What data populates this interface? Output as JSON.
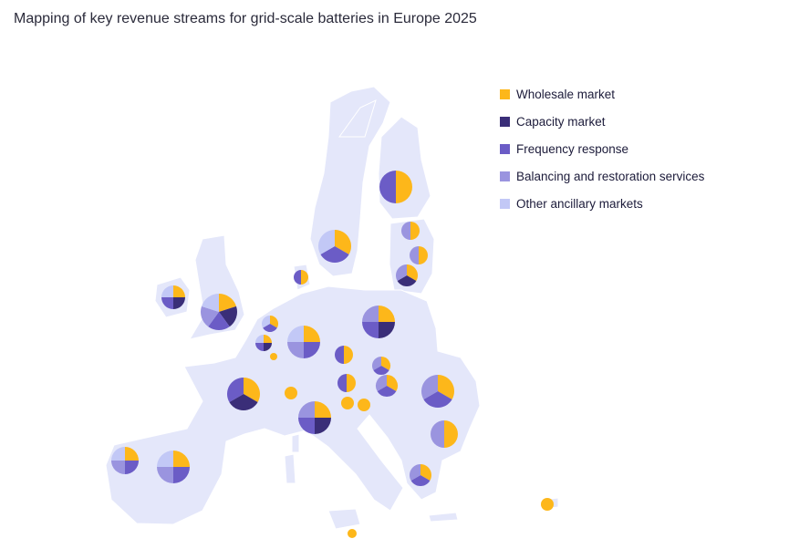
{
  "title": "Mapping of key revenue streams for grid-scale batteries in Europe 2025",
  "legend": [
    {
      "key": "W",
      "label": "Wholesale market",
      "color": "#FDB71A"
    },
    {
      "key": "C",
      "label": "Capacity market",
      "color": "#3A2E78"
    },
    {
      "key": "F",
      "label": "Frequency response",
      "color": "#6B5CC6"
    },
    {
      "key": "B",
      "label": "Balancing and restoration services",
      "color": "#9A94DF"
    },
    {
      "key": "O",
      "label": "Other ancillary markets",
      "color": "#C2C8F6"
    }
  ],
  "map_color": "#E4E7FA",
  "pies": [
    [
      "W",
      "F"
    ],
    [
      "W",
      "B"
    ],
    [
      "W",
      "B"
    ],
    [
      "W",
      "C",
      "B"
    ],
    [
      "W",
      "F",
      "O"
    ],
    [
      "W",
      "F"
    ],
    [
      "W",
      "C",
      "F",
      "O"
    ],
    [
      "W",
      "C",
      "F",
      "B",
      "O"
    ],
    [
      "W",
      "F",
      "O"
    ],
    [
      "W",
      "C",
      "F",
      "O"
    ],
    [
      "W"
    ],
    [
      "W",
      "F",
      "B",
      "O"
    ],
    [
      "W",
      "C",
      "F",
      "B"
    ],
    [
      "W",
      "F"
    ],
    [
      "W",
      "F",
      "B"
    ],
    [
      "W",
      "F"
    ],
    [
      "W",
      "F",
      "B"
    ],
    [
      "W",
      "F",
      "B"
    ],
    [
      "W",
      "B"
    ],
    [
      "W",
      "F",
      "B"
    ],
    [
      "W",
      "C",
      "F"
    ],
    [
      "W"
    ],
    [
      "W"
    ],
    [
      "W"
    ],
    [
      "W",
      "C",
      "F",
      "B"
    ],
    [
      "W",
      "F",
      "B",
      "O"
    ],
    [
      "W",
      "F",
      "B",
      "O"
    ],
    [
      "W"
    ],
    [
      "W"
    ]
  ]
}
